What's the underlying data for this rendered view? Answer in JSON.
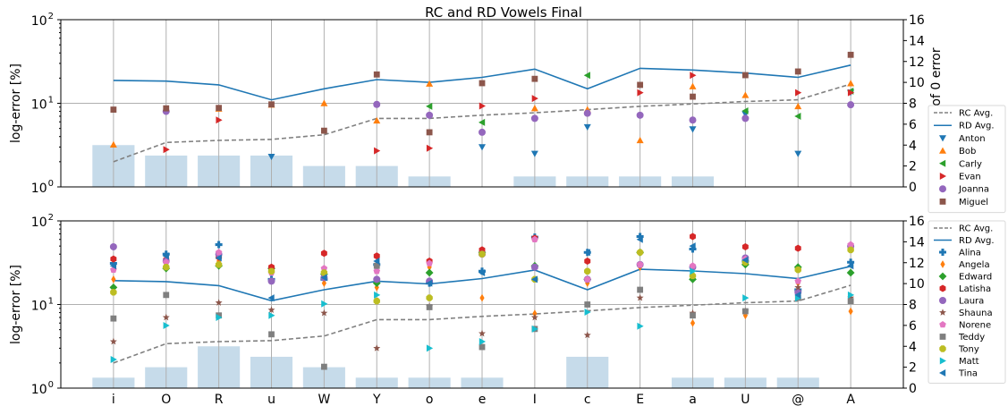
{
  "figure_title": "RC and RD Vowels Final",
  "colors": {
    "rc_avg": "#808080",
    "rd_avg": "#1f77b4",
    "bar": "#c6dbea",
    "grid": "#b0b0b0"
  },
  "chart_data": [
    {
      "type": "line+scatter+bar",
      "title": "RC and RD Vowels Final",
      "ylabel_left": "log-error [%]",
      "ylabel_right": "number of 0 error",
      "yscale_left": "log",
      "ylim_left": [
        1,
        100
      ],
      "yticks_left": [
        {
          "v": 1,
          "base": "10",
          "exp": "0"
        },
        {
          "v": 10,
          "base": "10",
          "exp": "1"
        },
        {
          "v": 100,
          "base": "10",
          "exp": "2"
        }
      ],
      "ylim_right": [
        0,
        16
      ],
      "yticks_right": [
        "0",
        "2",
        "4",
        "6",
        "8",
        "10",
        "12",
        "14",
        "16"
      ],
      "grid": "vertical at each category, horizontal at 10",
      "legend_position": "right, outside",
      "categories": [
        "i",
        "O",
        "R",
        "u",
        "W",
        "Y",
        "o",
        "e",
        "I",
        "c",
        "E",
        "a",
        "U",
        "@",
        "A"
      ],
      "show_xticklabels": false,
      "bars": [
        4,
        3,
        3,
        3,
        2,
        2,
        1,
        0,
        1,
        1,
        1,
        1,
        0,
        0,
        0
      ],
      "lines": [
        {
          "name": "RC Avg.",
          "style": "dashed",
          "color": "#808080",
          "values": [
            2.0,
            3.4,
            3.6,
            3.7,
            4.2,
            6.6,
            6.6,
            7.2,
            7.7,
            8.4,
            9.2,
            9.8,
            10.5,
            11.0,
            17.0
          ]
        },
        {
          "name": "RD Avg.",
          "style": "solid",
          "color": "#1f77b4",
          "values": [
            18.8,
            18.4,
            16.6,
            11.0,
            14.9,
            19.2,
            17.8,
            20.4,
            25.6,
            14.9,
            26.2,
            25.0,
            23.0,
            20.4,
            28.6
          ]
        }
      ],
      "series": [
        {
          "name": "Anton",
          "marker": "triangle-down",
          "color": "#1f77b4",
          "values": [
            null,
            null,
            null,
            2.3,
            null,
            null,
            null,
            3.0,
            2.5,
            5.2,
            null,
            4.9,
            7.4,
            2.5,
            13.5
          ]
        },
        {
          "name": "Bob",
          "marker": "triangle-up",
          "color": "#ff7f0e",
          "values": [
            3.2,
            8.5,
            8.6,
            9.6,
            10.0,
            6.2,
            17.1,
            null,
            8.7,
            8.4,
            3.6,
            15.9,
            12.5,
            9.2,
            17.3
          ]
        },
        {
          "name": "Carly",
          "marker": "triangle-left",
          "color": "#2ca02c",
          "values": [
            null,
            null,
            null,
            null,
            null,
            null,
            9.2,
            5.9,
            null,
            21.6,
            null,
            null,
            8.1,
            7.0,
            14.0
          ]
        },
        {
          "name": "Evan",
          "marker": "triangle-right",
          "color": "#d62728",
          "values": [
            null,
            2.8,
            6.3,
            null,
            null,
            2.7,
            2.9,
            9.3,
            11.4,
            null,
            13.4,
            21.6,
            null,
            13.4,
            13.4
          ]
        },
        {
          "name": "Joanna",
          "marker": "circle",
          "color": "#9467bd",
          "values": [
            null,
            8.0,
            null,
            null,
            null,
            9.7,
            7.2,
            4.5,
            6.6,
            7.6,
            7.2,
            6.3,
            6.6,
            null,
            9.6
          ]
        },
        {
          "name": "Miguel",
          "marker": "square",
          "color": "#8c564b",
          "values": [
            8.4,
            8.7,
            8.8,
            9.7,
            4.7,
            22.1,
            4.5,
            17.4,
            19.6,
            null,
            16.6,
            12.0,
            21.7,
            24.0,
            38.0
          ]
        }
      ]
    },
    {
      "type": "line+scatter+bar",
      "ylabel_left": "log-error [%]",
      "ylabel_right": "number of 0 error",
      "yscale_left": "log",
      "ylim_left": [
        1,
        100
      ],
      "yticks_left": [
        {
          "v": 1,
          "base": "10",
          "exp": "0"
        },
        {
          "v": 10,
          "base": "10",
          "exp": "1"
        },
        {
          "v": 100,
          "base": "10",
          "exp": "2"
        }
      ],
      "ylim_right": [
        0,
        16
      ],
      "yticks_right": [
        "0",
        "2",
        "4",
        "6",
        "8",
        "10",
        "12",
        "14",
        "16"
      ],
      "grid": "vertical at each category, horizontal at 10",
      "legend_position": "right, outside",
      "categories": [
        "i",
        "O",
        "R",
        "u",
        "W",
        "Y",
        "o",
        "e",
        "I",
        "c",
        "E",
        "a",
        "U",
        "@",
        "A"
      ],
      "show_xticklabels": true,
      "bars": [
        1,
        2,
        4,
        3,
        2,
        1,
        1,
        1,
        0,
        3,
        0,
        1,
        1,
        1,
        0
      ],
      "lines": [
        {
          "name": "RC Avg.",
          "style": "dashed",
          "color": "#808080",
          "values": [
            2.0,
            3.4,
            3.6,
            3.7,
            4.2,
            6.6,
            6.6,
            7.2,
            7.7,
            8.4,
            9.2,
            9.8,
            10.5,
            11.0,
            17.0
          ]
        },
        {
          "name": "RD Avg.",
          "style": "solid",
          "color": "#1f77b4",
          "values": [
            19.3,
            18.8,
            16.8,
            11.1,
            15.0,
            19.0,
            17.6,
            20.4,
            25.8,
            15.0,
            26.4,
            25.2,
            23.4,
            20.4,
            28.6
          ]
        }
      ],
      "series": [
        {
          "name": "Alina",
          "marker": "plus",
          "color": "#1f77b4",
          "values": [
            31,
            40,
            52,
            20,
            20,
            30,
            18,
            25,
            64,
            42,
            65,
            46,
            33,
            15,
            32
          ]
        },
        {
          "name": "Angela",
          "marker": "thin-diamond",
          "color": "#ff7f0e",
          "values": [
            20,
            36,
            33,
            25,
            18,
            16,
            28,
            12,
            7.8,
            18,
            28,
            6.0,
            7.4,
            18,
            8.3
          ]
        },
        {
          "name": "Edward",
          "marker": "diamond",
          "color": "#2ca02c",
          "values": [
            16,
            27,
            29,
            27,
            23,
            18,
            24,
            42,
            29,
            20,
            42,
            20,
            30,
            28,
            24
          ]
        },
        {
          "name": "Latisha",
          "marker": "hexagon",
          "color": "#d62728",
          "values": [
            35,
            34,
            37,
            28,
            41,
            38,
            33,
            45,
            62,
            33,
            30,
            65,
            49,
            47,
            48
          ]
        },
        {
          "name": "Laura",
          "marker": "circle",
          "color": "#9467bd",
          "values": [
            49,
            33,
            40,
            19,
            21,
            20,
            19,
            40,
            28,
            20,
            30,
            28,
            36,
            14,
            50
          ]
        },
        {
          "name": "Shauna",
          "marker": "star",
          "color": "#8c564b",
          "values": [
            3.6,
            7.0,
            10.5,
            8.6,
            7.9,
            3.0,
            9.5,
            4.5,
            7.0,
            4.3,
            12,
            7.9,
            8.3,
            16,
            12
          ]
        },
        {
          "name": "Norene",
          "marker": "pentagon",
          "color": "#e377c2",
          "values": [
            26,
            32,
            42,
            24,
            27,
            25,
            31,
            40,
            60,
            20,
            30,
            29,
            35,
            19,
            52
          ]
        },
        {
          "name": "Teddy",
          "marker": "square",
          "color": "#7f7f7f",
          "values": [
            6.8,
            13,
            7.4,
            4.4,
            1.8,
            29,
            9.3,
            3.1,
            5.1,
            10,
            15,
            7.4,
            8.3,
            12,
            11
          ]
        },
        {
          "name": "Tony",
          "marker": "octagon",
          "color": "#bcbd22",
          "values": [
            14,
            28,
            30,
            25,
            24,
            11,
            12,
            40,
            20,
            25,
            42,
            22,
            32,
            26,
            45
          ]
        },
        {
          "name": "Matt",
          "marker": "triangle-right",
          "color": "#17becf",
          "values": [
            2.2,
            5.6,
            7.0,
            7.4,
            10.2,
            13,
            3.0,
            3.6,
            5.1,
            8.1,
            5.5,
            25,
            12,
            12,
            13
          ]
        },
        {
          "name": "Tina",
          "marker": "triangle-left",
          "color": "#1f77b4",
          "values": [
            29,
            38,
            36,
            12,
            21,
            33,
            18,
            24,
            20,
            42,
            60,
            50,
            34,
            13,
            29
          ]
        }
      ]
    }
  ]
}
